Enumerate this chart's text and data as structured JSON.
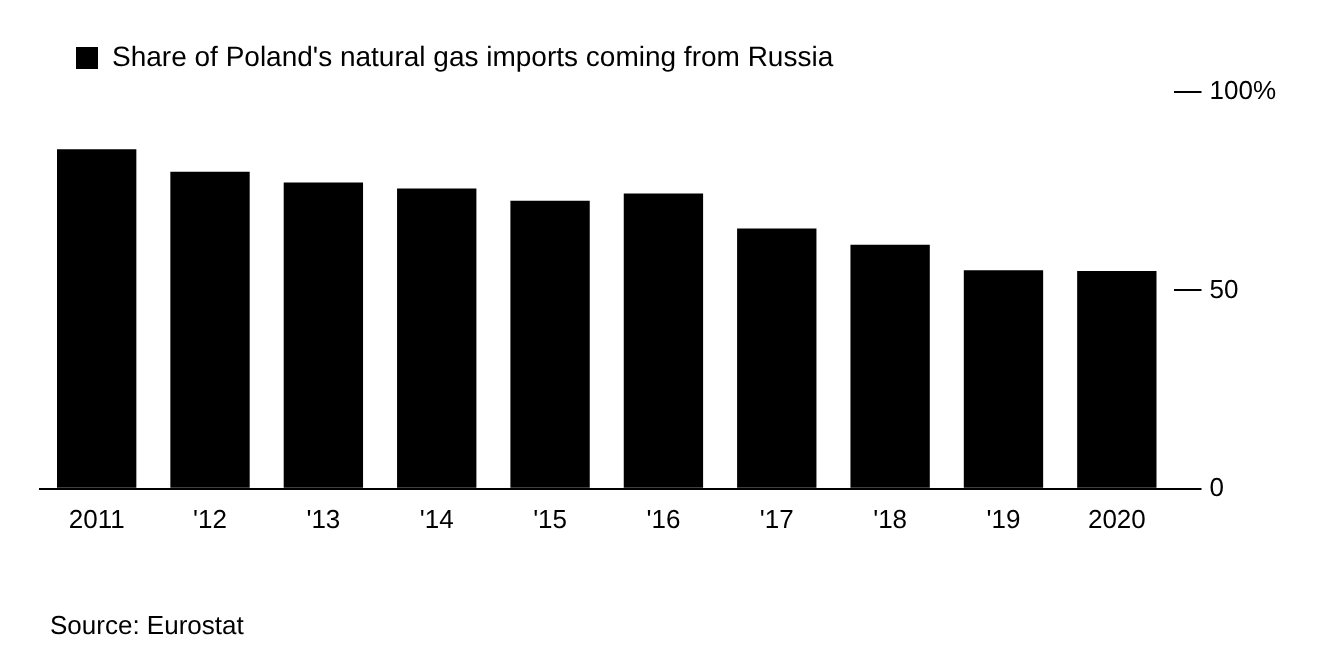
{
  "chart_data": {
    "type": "bar",
    "categories": [
      "2011",
      "'12",
      "'13",
      "'14",
      "'15",
      "'16",
      "'17",
      "'18",
      "'19",
      "2020"
    ],
    "series": [
      {
        "name": "Share of Poland's natural gas imports coming from Russia",
        "color": "#000000",
        "values": [
          85.6,
          79.9,
          77.2,
          75.7,
          72.6,
          74.4,
          65.6,
          61.5,
          55.1,
          54.9
        ]
      }
    ],
    "ylim": [
      0,
      100
    ],
    "yticks": [
      0,
      50,
      {
        "value": 100,
        "label": "100%"
      }
    ],
    "grid": false,
    "legend": "top left",
    "annotations": [
      "Source: Eurostat"
    ]
  }
}
